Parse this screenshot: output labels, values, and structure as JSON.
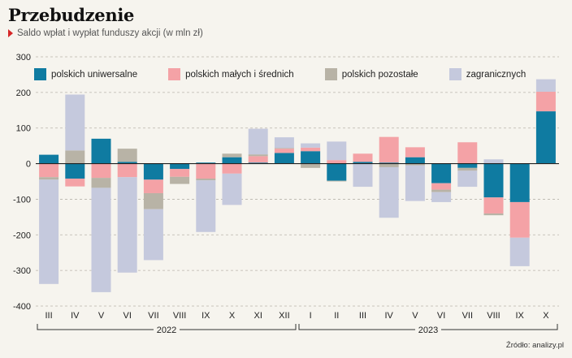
{
  "header": {
    "title": "Przebudzenie",
    "subtitle": "Saldo wpłat i wypłat funduszy akcji (w mln zł)"
  },
  "source": "Źródło: analizy.pl",
  "colors": {
    "uniwersalne": "#0f7ba1",
    "male": "#f4a2a6",
    "pozostale": "#b8b3a6",
    "zagraniczne": "#c5c9dd"
  },
  "chart_data": {
    "type": "bar",
    "stacked": true,
    "title": "Przebudzenie",
    "subtitle": "Saldo wpłat i wypłat funduszy akcji (w mln zł)",
    "xlabel": "",
    "ylabel": "",
    "ylim": [
      -400,
      300
    ],
    "yticks": [
      300,
      200,
      100,
      0,
      -100,
      -200,
      -300,
      -400
    ],
    "categories": [
      "III",
      "IV",
      "V",
      "VI",
      "VII",
      "VIII",
      "IX",
      "X",
      "XI",
      "XII",
      "I",
      "II",
      "III",
      "IV",
      "V",
      "VI",
      "VII",
      "VIII",
      "IX",
      "X"
    ],
    "year_groups": [
      {
        "label": "2022",
        "start": 0,
        "end": 9
      },
      {
        "label": "2023",
        "start": 10,
        "end": 19
      }
    ],
    "legend_position": "top",
    "grid": true,
    "series": [
      {
        "name": "polskich uniwersalne",
        "key": "uniwersalne",
        "values": [
          25,
          -42,
          70,
          5,
          -45,
          -15,
          3,
          18,
          3,
          30,
          35,
          -48,
          5,
          3,
          18,
          -55,
          -12,
          -95,
          -108,
          147
        ]
      },
      {
        "name": "polskich małych i średnich",
        "key": "male",
        "values": [
          -38,
          -22,
          -40,
          -38,
          -38,
          -22,
          -42,
          -28,
          18,
          12,
          10,
          10,
          23,
          72,
          28,
          -18,
          60,
          -45,
          -100,
          55
        ]
      },
      {
        "name": "polskich pozostałe",
        "key": "pozostale",
        "values": [
          -7,
          37,
          -28,
          37,
          -45,
          -20,
          -5,
          10,
          5,
          2,
          -12,
          -2,
          0,
          -10,
          -5,
          -7,
          -8,
          -5,
          0,
          0
        ]
      },
      {
        "name": "zagranicznych",
        "key": "zagraniczne",
        "values": [
          -293,
          157,
          -293,
          -268,
          -143,
          0,
          -145,
          -88,
          72,
          30,
          12,
          52,
          -65,
          -142,
          -100,
          -28,
          -45,
          12,
          -80,
          35
        ]
      }
    ]
  }
}
